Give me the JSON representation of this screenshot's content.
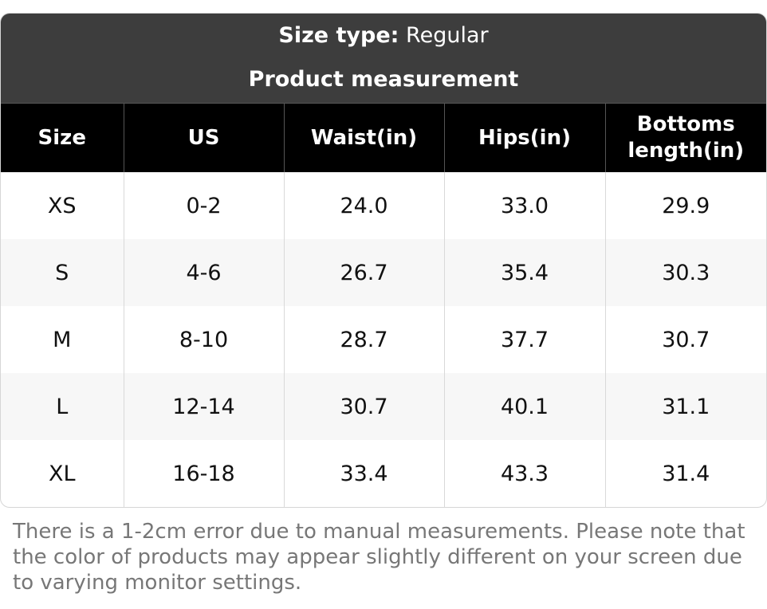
{
  "header": {
    "size_type_label": "Size type:",
    "size_type_value": "Regular",
    "section_title": "Product measurement"
  },
  "table": {
    "columns": [
      "Size",
      "US",
      "Waist(in)",
      "Hips(in)",
      "Bottoms length(in)"
    ],
    "rows": [
      [
        "XS",
        "0-2",
        "24.0",
        "33.0",
        "29.9"
      ],
      [
        "S",
        "4-6",
        "26.7",
        "35.4",
        "30.3"
      ],
      [
        "M",
        "8-10",
        "28.7",
        "37.7",
        "30.7"
      ],
      [
        "L",
        "12-14",
        "30.7",
        "40.1",
        "31.1"
      ],
      [
        "XL",
        "16-18",
        "33.4",
        "43.3",
        "31.4"
      ]
    ]
  },
  "note": "There is a 1-2cm error due to manual measurements. Please note that the color of products may appear slightly different on your screen due to varying monitor settings.",
  "colors": {
    "header_bg": "#3d3d3d",
    "table_head_bg": "#000000",
    "stripe_bg": "#f7f7f7",
    "note_text": "#777777"
  }
}
